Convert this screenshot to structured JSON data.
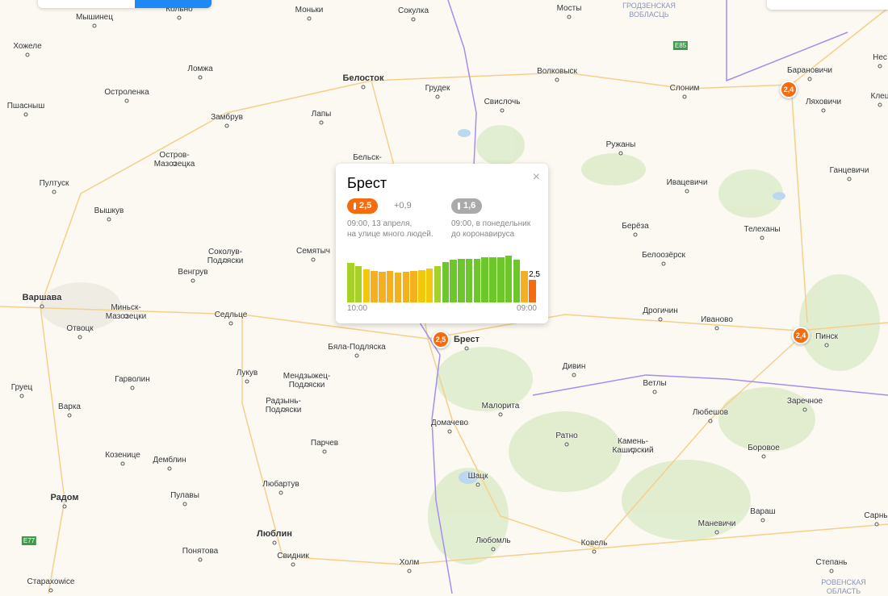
{
  "map": {
    "colors": {
      "background": "#fbf9f1",
      "border": "#a58ef0",
      "road": "#f6cf8c",
      "forest": "#d9ebc6",
      "marker": "#f56b0e"
    },
    "cities": [
      "Мышинец",
      "Кольно",
      "Моньки",
      "Сокулка",
      "Мосты",
      "ГРОДЗЕНСКАЯ\nВОБЛАСЦЬ",
      "Хожеле",
      "Ломжа",
      "Белосток",
      "Грудек",
      "Волковыск",
      "Слоним",
      "Барановичи",
      "Ляховичи",
      "Нес",
      "Клец",
      "Остроленка",
      "Замбрув",
      "Лапы",
      "Свислочь",
      "Пшасныш",
      "Остров-\nМазовецка",
      "Бельск-",
      "Ружаны",
      "Ивацевичи",
      "Ганцевичи",
      "Пултуск",
      "Вышкув",
      "Соколув-\nПодляски",
      "Семятыч",
      "Берёза",
      "Телеханы",
      "Венгрув",
      "Белоозёрск",
      "Варшава",
      "Миньск-\nМазовецки",
      "Седльце",
      "Дрогичин",
      "Иваново",
      "Пинск",
      "Отвоцк",
      "Бяла-Подляска",
      "Брест",
      "Лукув",
      "Мендзыжец-\nПодляски",
      "Дивин",
      "Ветлы",
      "Груец",
      "Гарволин",
      "Радзынь-\nПодляски",
      "Заречное",
      "Варка",
      "Домачево",
      "Малорита",
      "Ратно",
      "Любешов",
      "Камень-\nКаширский",
      "Козенице",
      "Демблин",
      "Парчев",
      "Боровое",
      "Шацк",
      "Радом",
      "Пулавы",
      "Любартув",
      "Вараш",
      "Сарны",
      "Маневичи",
      "Люблин",
      "Любомль",
      "Ковель",
      "Понятова",
      "Свидник",
      "Холм",
      "Степань",
      "Старахowice",
      "РОВЕНСКАЯ\nОБЛАСТЬ",
      "E85",
      "E77"
    ],
    "markers": [
      {
        "label": "2,4",
        "city": "Барановичи"
      },
      {
        "label": "2,4",
        "city": "Пинск"
      },
      {
        "label": "2,5",
        "city": "Брест"
      }
    ]
  },
  "popup": {
    "title": "Брест",
    "current": {
      "value": "2,5",
      "delta": "+0,9",
      "desc_line1": "09:00, 13 апреля,",
      "desc_line2": "на улице много людей."
    },
    "baseline": {
      "value": "1,6",
      "desc_line1": "09:00, в понедельник",
      "desc_line2": "до коронавируса"
    },
    "close": "×",
    "chart_data": {
      "type": "bar",
      "categories_start": "10:00",
      "categories_end": "09:00",
      "values": [
        4.4,
        4.1,
        3.7,
        3.5,
        3.4,
        3.5,
        3.3,
        3.4,
        3.5,
        3.6,
        3.8,
        4.1,
        4.5,
        4.8,
        4.9,
        4.9,
        4.9,
        5.1,
        5.1,
        5.1,
        5.2,
        4.8,
        3.5,
        2.5
      ],
      "last_label": "2,5"
    }
  }
}
